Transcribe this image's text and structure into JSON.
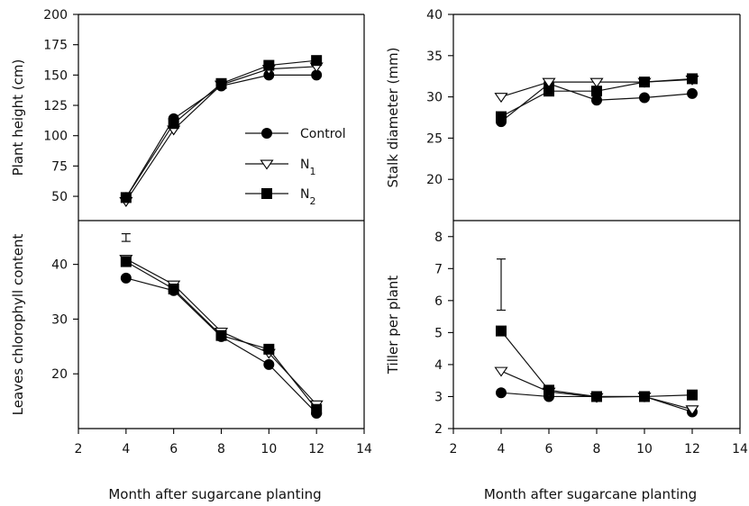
{
  "chart_data": [
    {
      "type": "line",
      "panel": "top-left",
      "ylabel": "Plant height (cm)",
      "xlabel": "",
      "ylim": [
        30,
        200
      ],
      "yticks": [
        50,
        75,
        100,
        125,
        150,
        175,
        200
      ],
      "xlim": [
        2,
        14
      ],
      "xticks": [],
      "x": [
        4,
        6,
        8,
        10,
        12
      ],
      "series": [
        {
          "name": "Control",
          "marker": "circle",
          "values": [
            49,
            114,
            141,
            150,
            150
          ]
        },
        {
          "name": "N1",
          "marker": "triangle-down",
          "values": [
            46,
            105,
            142,
            155,
            157
          ]
        },
        {
          "name": "N2",
          "marker": "square",
          "values": [
            49,
            110,
            143,
            158,
            162
          ]
        }
      ],
      "legend": {
        "position": "center-right",
        "entries": [
          {
            "label": "Control",
            "sub": ""
          },
          {
            "label": "N",
            "sub": "1"
          },
          {
            "label": "N",
            "sub": "2"
          }
        ]
      },
      "error_bars": []
    },
    {
      "type": "line",
      "panel": "top-right",
      "ylabel": "Stalk diameter (mm)",
      "xlabel": "",
      "ylim": [
        15,
        40
      ],
      "yticks": [
        20,
        25,
        30,
        35,
        40
      ],
      "xlim": [
        2,
        14
      ],
      "xticks": [],
      "x": [
        4,
        6,
        8,
        10,
        12
      ],
      "series": [
        {
          "name": "Control",
          "marker": "circle",
          "values": [
            27.0,
            31.6,
            29.6,
            29.9,
            30.4
          ]
        },
        {
          "name": "N1",
          "marker": "triangle-down",
          "values": [
            30.0,
            31.8,
            31.8,
            31.8,
            32.1
          ]
        },
        {
          "name": "N2",
          "marker": "square",
          "values": [
            27.6,
            30.7,
            30.7,
            31.8,
            32.2
          ]
        }
      ],
      "error_bars": []
    },
    {
      "type": "line",
      "panel": "bottom-left",
      "ylabel": "Leaves chlorophyll content",
      "xlabel": "Month after sugarcane planting",
      "ylim": [
        10,
        48
      ],
      "yticks": [
        20,
        30,
        40
      ],
      "xlim": [
        2,
        14
      ],
      "xticks": [
        2,
        4,
        6,
        8,
        10,
        12,
        14
      ],
      "x": [
        4,
        6,
        8,
        10,
        12
      ],
      "series": [
        {
          "name": "Control",
          "marker": "circle",
          "values": [
            37.5,
            35.2,
            26.8,
            21.7,
            12.8
          ]
        },
        {
          "name": "N1",
          "marker": "triangle-down",
          "values": [
            41.0,
            36.3,
            27.7,
            23.8,
            14.4
          ]
        },
        {
          "name": "N2",
          "marker": "square",
          "values": [
            40.5,
            35.5,
            27.0,
            24.5,
            13.5
          ]
        }
      ],
      "error_bars": [
        {
          "x": 4,
          "low": 44.2,
          "high": 45.6
        }
      ]
    },
    {
      "type": "line",
      "panel": "bottom-right",
      "ylabel": "Tiller per plant",
      "xlabel": "Month after sugarcane planting",
      "ylim": [
        2,
        8.5
      ],
      "yticks": [
        2,
        3,
        4,
        5,
        6,
        7,
        8
      ],
      "xlim": [
        2,
        14
      ],
      "xticks": [
        2,
        4,
        6,
        8,
        10,
        12,
        14
      ],
      "x": [
        4,
        6,
        8,
        10,
        12
      ],
      "series": [
        {
          "name": "Control",
          "marker": "circle",
          "values": [
            3.12,
            3.0,
            3.0,
            3.0,
            2.52
          ]
        },
        {
          "name": "N1",
          "marker": "triangle-down",
          "values": [
            3.8,
            3.15,
            2.98,
            3.0,
            2.6
          ]
        },
        {
          "name": "N2",
          "marker": "square",
          "values": [
            5.05,
            3.2,
            3.0,
            3.0,
            3.05
          ]
        }
      ],
      "error_bars": [
        {
          "x": 4,
          "low": 5.7,
          "high": 7.3
        }
      ]
    }
  ]
}
